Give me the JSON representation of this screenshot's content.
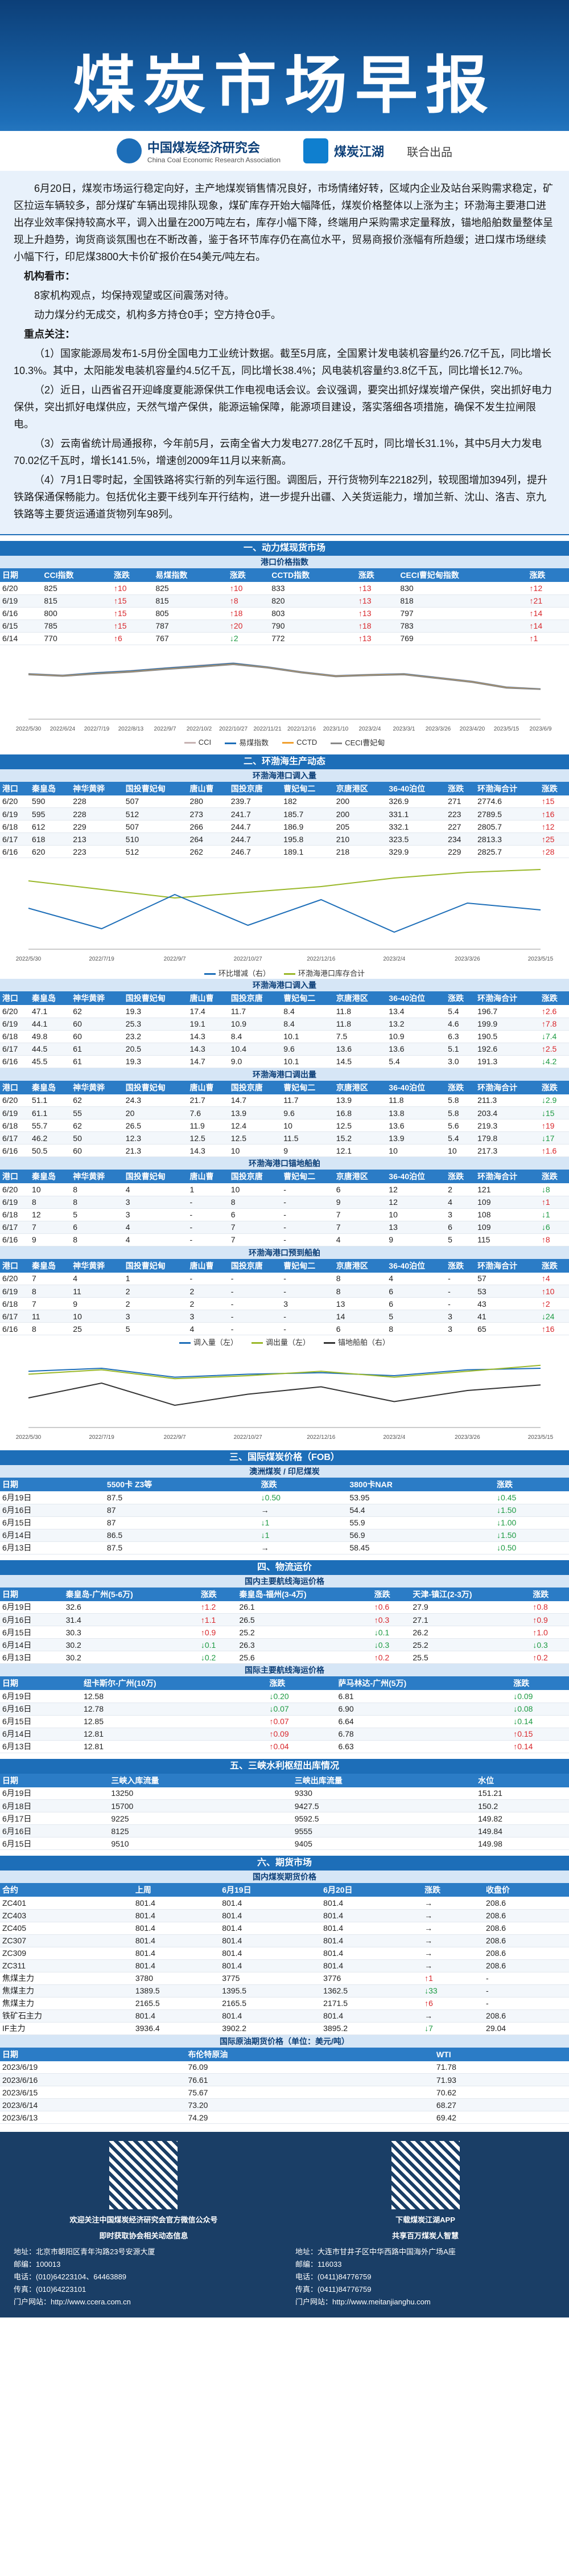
{
  "header": {
    "title": "煤炭市场早报",
    "org1": "中国煤炭经济研究会",
    "org1_en": "China Coal Economic Research Association",
    "org2": "煤炭江湖",
    "tag": "联合出品"
  },
  "summary": {
    "para1": "6月20日，煤炭市场运行稳定向好，主产地煤炭销售情况良好，市场情绪好转，区域内企业及站台采购需求稳定，矿区拉运车辆较多，部分煤矿车辆出现排队现象，煤矿库存开始大幅降低，煤炭价格整体以上涨为主；环渤海主要港口进出存业效率保持较高水平，调入出量在200万吨左右，库存小幅下降，终端用户采购需求定量释放，锚地船舶数量整体呈现上升趋势，询货商谈氛围也在不断改善，鉴于各环节库存仍在高位水平，贸易商报价涨幅有所趋缓；进口煤市场继续小幅下行，印尼煤3800大卡价矿报价在54美元/吨左右。",
    "views_head": "机构看市：",
    "views1": "8家机构观点，均保持观望或区间震荡对待。",
    "views2": "动力煤分约无成交，机构多方持仓0手；空方持仓0手。",
    "focus_head": "重点关注：",
    "focus1": "（1）国家能源局发布1-5月份全国电力工业统计数据。截至5月底，全国累计发电装机容量约26.7亿千瓦，同比增长10.3%。其中，太阳能发电装机容量约4.5亿千瓦，同比增长38.4%；风电装机容量约3.8亿千瓦，同比增长12.7%。",
    "focus2": "（2）近日，山西省召开迎峰度夏能源保供工作电视电话会议。会议强调，要突出抓好煤炭增产保供，突出抓好电力保供，突出抓好电煤供应，天然气增产保供，能源运输保障，能源项目建设，落实落细各项措施，确保不发生拉闸限电。",
    "focus3": "（3）云南省统计局通报称，今年前5月，云南全省大力发电277.28亿千瓦时，同比增长31.1%，其中5月大力发电70.02亿千瓦时，增长141.5%，增速创2009年11月以来新高。",
    "focus4": "（4）7月1日零时起，全国铁路将实行新的列车运行图。调图后，开行货物列车22182列，较现图增加394列，提升铁路保通保畅能力。包括优化主要干线列车开行结构，进一步提升出疆、入关货运能力，增加兰新、沈山、洛吉、京九铁路等主要货运通道货物列车98列。"
  },
  "s1": {
    "title": "一、动力煤现货市场",
    "sub": "港口价格指数",
    "headers": [
      "日期",
      "CCI指数",
      "涨跌",
      "易煤指数",
      "涨跌",
      "CCTD指数",
      "涨跌",
      "CECI曹妃甸指数",
      "涨跌"
    ],
    "rows": [
      [
        "6/20",
        "825",
        "↑10",
        "825",
        "↑10",
        "833",
        "↑13",
        "830",
        "↑12"
      ],
      [
        "6/19",
        "815",
        "↑15",
        "815",
        "↑8",
        "820",
        "↑13",
        "818",
        "↑21"
      ],
      [
        "6/16",
        "800",
        "↑15",
        "805",
        "↑18",
        "803",
        "↑13",
        "797",
        "↑14"
      ],
      [
        "6/15",
        "785",
        "↑15",
        "787",
        "↑20",
        "790",
        "↑18",
        "783",
        "↑14"
      ],
      [
        "6/14",
        "770",
        "↑6",
        "767",
        "↓2",
        "772",
        "↑13",
        "769",
        "↑1"
      ]
    ],
    "legend": [
      "CCI",
      "易煤指数",
      "CCTD",
      "CECI曹妃甸"
    ],
    "colors": [
      "#c7b3b3",
      "#1d6eb8",
      "#f0a030",
      "#888888"
    ]
  },
  "s2": {
    "title": "二、环渤海生产动态",
    "sub1": "环渤海港口调入量",
    "headers": [
      "港口",
      "秦皇岛",
      "神华黄骅",
      "国投曹妃甸",
      "唐山曹",
      "国投京唐",
      "曹妃甸二",
      "京唐港区",
      "36-40泊位",
      "涨跌",
      "环渤海合计",
      "涨跌"
    ],
    "rows1": [
      [
        "6/20",
        "590",
        "228",
        "507",
        "280",
        "239.7",
        "182",
        "200",
        "326.9",
        "271",
        "2774.6",
        "↑15"
      ],
      [
        "6/19",
        "595",
        "228",
        "512",
        "273",
        "241.7",
        "185.7",
        "200",
        "331.1",
        "223",
        "2789.5",
        "↑16"
      ],
      [
        "6/18",
        "612",
        "229",
        "507",
        "266",
        "244.7",
        "186.9",
        "205",
        "332.1",
        "227",
        "2805.7",
        "↑12"
      ],
      [
        "6/17",
        "618",
        "213",
        "510",
        "264",
        "244.7",
        "195.8",
        "210",
        "323.5",
        "234",
        "2813.3",
        "↑25"
      ],
      [
        "6/16",
        "620",
        "223",
        "512",
        "262",
        "246.7",
        "189.1",
        "218",
        "329.9",
        "229",
        "2825.7",
        "↑28"
      ]
    ],
    "chart_legend": [
      "环比增减（右）",
      "环渤海港口库存合计"
    ],
    "sub2": "环渤海港口调入量",
    "rows2": [
      [
        "6/20",
        "47.1",
        "62",
        "19.3",
        "17.4",
        "11.7",
        "8.4",
        "11.8",
        "13.4",
        "5.4",
        "196.7",
        "↑2.6"
      ],
      [
        "6/19",
        "44.1",
        "60",
        "25.3",
        "19.1",
        "10.9",
        "8.4",
        "11.8",
        "13.2",
        "4.6",
        "199.9",
        "↑7.8"
      ],
      [
        "6/18",
        "49.8",
        "60",
        "23.2",
        "14.3",
        "8.4",
        "10.1",
        "7.5",
        "10.9",
        "6.3",
        "190.5",
        "↓7.4"
      ],
      [
        "6/17",
        "44.5",
        "61",
        "20.5",
        "14.3",
        "10.4",
        "9.6",
        "13.6",
        "13.6",
        "5.1",
        "192.6",
        "↑2.5"
      ],
      [
        "6/16",
        "45.5",
        "61",
        "19.3",
        "14.7",
        "9.0",
        "10.1",
        "14.5",
        "5.4",
        "3.0",
        "191.3",
        "↓4.2"
      ]
    ],
    "sub3": "环渤海港口调出量",
    "rows3": [
      [
        "6/20",
        "51.1",
        "62",
        "24.3",
        "21.7",
        "14.7",
        "11.7",
        "13.9",
        "11.8",
        "5.8",
        "211.3",
        "↓2.9"
      ],
      [
        "6/19",
        "61.1",
        "55",
        "20",
        "7.6",
        "13.9",
        "9.6",
        "16.8",
        "13.8",
        "5.8",
        "203.4",
        "↓15"
      ],
      [
        "6/18",
        "55.7",
        "62",
        "26.5",
        "11.9",
        "12.4",
        "10",
        "12.5",
        "13.6",
        "5.6",
        "219.3",
        "↑19"
      ],
      [
        "6/17",
        "46.2",
        "50",
        "12.3",
        "12.5",
        "12.5",
        "11.5",
        "15.2",
        "13.9",
        "5.4",
        "179.8",
        "↓17"
      ],
      [
        "6/16",
        "50.5",
        "60",
        "21.3",
        "14.3",
        "10",
        "9",
        "12.1",
        "10",
        "10",
        "217.3",
        "↑1.6"
      ]
    ],
    "sub4": "环渤海港口锚地船舶",
    "rows4": [
      [
        "6/20",
        "10",
        "8",
        "4",
        "1",
        "10",
        "-",
        "6",
        "12",
        "2",
        "121",
        "↓8"
      ],
      [
        "6/19",
        "8",
        "8",
        "3",
        "-",
        "8",
        "-",
        "9",
        "12",
        "4",
        "109",
        "↑1"
      ],
      [
        "6/18",
        "12",
        "5",
        "3",
        "-",
        "6",
        "-",
        "7",
        "10",
        "3",
        "108",
        "↓1"
      ],
      [
        "6/17",
        "7",
        "6",
        "4",
        "-",
        "7",
        "-",
        "7",
        "13",
        "6",
        "109",
        "↓6"
      ],
      [
        "6/16",
        "9",
        "8",
        "4",
        "-",
        "7",
        "-",
        "4",
        "9",
        "5",
        "115",
        "↑8"
      ]
    ],
    "sub5": "环渤海港口预到船舶",
    "rows5": [
      [
        "6/20",
        "7",
        "4",
        "1",
        "-",
        "-",
        "-",
        "8",
        "4",
        "-",
        "57",
        "↑4"
      ],
      [
        "6/19",
        "8",
        "11",
        "2",
        "2",
        "-",
        "-",
        "8",
        "6",
        "-",
        "53",
        "↑10"
      ],
      [
        "6/18",
        "7",
        "9",
        "2",
        "2",
        "-",
        "3",
        "13",
        "6",
        "-",
        "43",
        "↑2"
      ],
      [
        "6/17",
        "11",
        "10",
        "3",
        "3",
        "-",
        "-",
        "14",
        "5",
        "3",
        "41",
        "↓24"
      ],
      [
        "6/16",
        "8",
        "25",
        "5",
        "4",
        "-",
        "-",
        "6",
        "8",
        "3",
        "65",
        "↑16"
      ]
    ],
    "flow_legend": [
      "调入量（左）",
      "调出量（左）",
      "锚地船舶（右）"
    ],
    "flow_unit": "单位：万吨"
  },
  "s3": {
    "title": "三、国际煤炭价格（FOB）",
    "aus_head": "澳洲煤炭",
    "indo_head": "印尼煤炭",
    "headers": [
      "日期",
      "5500卡 Z3等",
      "涨跌",
      "",
      "3800卡NAR",
      "涨跌"
    ],
    "rows": [
      [
        "6月19日",
        "87.5",
        "↓0.50",
        "",
        "53.95",
        "↓0.45"
      ],
      [
        "6月16日",
        "87",
        "→",
        "",
        "54.4",
        "↓1.50"
      ],
      [
        "6月15日",
        "87",
        "↓1",
        "",
        "55.9",
        "↓1.00"
      ],
      [
        "6月14日",
        "86.5",
        "↓1",
        "",
        "56.9",
        "↓1.50"
      ],
      [
        "6月13日",
        "87.5",
        "→",
        "",
        "58.45",
        "↓0.50"
      ]
    ]
  },
  "s4": {
    "title": "四、物流运价",
    "sub1": "国内主要航线海运价格",
    "headers1": [
      "日期",
      "秦皇岛-广州(5-6万)",
      "涨跌",
      "秦皇岛-福州(3-4万)",
      "涨跌",
      "天津-镇江(2-3万)",
      "涨跌"
    ],
    "rows1": [
      [
        "6月19日",
        "32.6",
        "↑1.2",
        "26.1",
        "↑0.6",
        "27.9",
        "↑0.8"
      ],
      [
        "6月16日",
        "31.4",
        "↑1.1",
        "26.5",
        "↑0.3",
        "27.1",
        "↑0.9"
      ],
      [
        "6月15日",
        "30.3",
        "↑0.9",
        "25.2",
        "↓0.1",
        "26.2",
        "↑1.0"
      ],
      [
        "6月14日",
        "30.2",
        "↓0.1",
        "26.3",
        "↓0.3",
        "25.2",
        "↓0.3"
      ],
      [
        "6月13日",
        "30.2",
        "↓0.2",
        "25.6",
        "↑0.2",
        "25.5",
        "↑0.2"
      ]
    ],
    "sub2": "国际主要航线海运价格",
    "headers2": [
      "日期",
      "纽卡斯尔-广州(10万)",
      "涨跌",
      "",
      "萨马林达-广州(5万)",
      "涨跌"
    ],
    "rows2": [
      [
        "6月19日",
        "12.58",
        "↓0.20",
        "",
        "6.81",
        "↓0.09"
      ],
      [
        "6月16日",
        "12.78",
        "↓0.07",
        "",
        "6.90",
        "↓0.08"
      ],
      [
        "6月15日",
        "12.85",
        "↑0.07",
        "",
        "6.64",
        "↓0.14"
      ],
      [
        "6月14日",
        "12.81",
        "↑0.09",
        "",
        "6.78",
        "↑0.15"
      ],
      [
        "6月13日",
        "12.81",
        "↑0.04",
        "",
        "6.63",
        "↑0.14"
      ]
    ]
  },
  "s5": {
    "title": "五、三峡水利枢纽出库情况",
    "headers": [
      "日期",
      "三峡入库流量",
      "",
      "三峡出库流量",
      "",
      "水位"
    ],
    "rows": [
      [
        "6月19日",
        "13250",
        "",
        "9330",
        "",
        "151.21"
      ],
      [
        "6月18日",
        "15700",
        "",
        "9427.5",
        "",
        "150.2"
      ],
      [
        "6月17日",
        "9225",
        "",
        "9592.5",
        "",
        "149.82"
      ],
      [
        "6月16日",
        "8125",
        "",
        "9555",
        "",
        "149.84"
      ],
      [
        "6月15日",
        "9510",
        "",
        "9405",
        "",
        "149.98"
      ]
    ]
  },
  "s6": {
    "title": "六、期货市场",
    "sub1": "国内煤炭期货价格",
    "headers1": [
      "合约",
      "上周",
      "6月19日",
      "6月20日",
      "涨跌",
      "收盘价"
    ],
    "rows1": [
      [
        "ZC401",
        "801.4",
        "801.4",
        "801.4",
        "→",
        "208.6"
      ],
      [
        "ZC403",
        "801.4",
        "801.4",
        "801.4",
        "→",
        "208.6"
      ],
      [
        "ZC405",
        "801.4",
        "801.4",
        "801.4",
        "→",
        "208.6"
      ],
      [
        "ZC307",
        "801.4",
        "801.4",
        "801.4",
        "→",
        "208.6"
      ],
      [
        "ZC309",
        "801.4",
        "801.4",
        "801.4",
        "→",
        "208.6"
      ],
      [
        "ZC311",
        "801.4",
        "801.4",
        "801.4",
        "→",
        "208.6"
      ],
      [
        "焦煤主力",
        "3780",
        "3775",
        "3776",
        "↑1",
        "-"
      ],
      [
        "焦煤主力",
        "1389.5",
        "1395.5",
        "1362.5",
        "↓33",
        "-"
      ],
      [
        "焦煤主力",
        "2165.5",
        "2165.5",
        "2171.5",
        "↑6",
        "-"
      ],
      [
        "铁矿石主力",
        "801.4",
        "801.4",
        "801.4",
        "→",
        "208.6"
      ],
      [
        "IF主力",
        "3936.4",
        "3902.2",
        "3895.2",
        "↓7",
        "29.04"
      ]
    ],
    "sub2": "国际原油期货价格（单位：美元/吨）",
    "headers2": [
      "日期",
      "布伦特原油",
      "",
      "",
      "WTI",
      ""
    ],
    "rows2": [
      [
        "2023/6/19",
        "76.09",
        "",
        "",
        "71.78",
        ""
      ],
      [
        "2023/6/16",
        "76.61",
        "",
        "",
        "71.93",
        ""
      ],
      [
        "2023/6/15",
        "75.67",
        "",
        "",
        "70.62",
        ""
      ],
      [
        "2023/6/14",
        "73.20",
        "",
        "",
        "68.27",
        ""
      ],
      [
        "2023/6/13",
        "74.29",
        "",
        "",
        "69.42",
        ""
      ]
    ]
  },
  "footer": {
    "left_cap": "欢迎关注中国煤炭经济研究会官方微信公众号",
    "left_cap2": "即时获取协会相关动态信息",
    "left_lines": [
      "地址：北京市朝阳区青年沟路23号安源大厦",
      "邮编：100013",
      "电话：(010)64223104、64463889",
      "传真：(010)64223101",
      "门户网站：http://www.ccera.com.cn"
    ],
    "right_cap": "下载煤炭江湖APP",
    "right_cap2": "共享百万煤炭人智慧",
    "right_lines": [
      "地址：大连市甘井子区中华西路中国海外广场A座",
      "邮编：116033",
      "电话：(0411)84776759",
      "传真：(0411)84776759",
      "门户网站：http://www.meitanjianghu.com"
    ]
  },
  "chart_data": [
    {
      "type": "line",
      "x": [
        "2022/5/30",
        "2022/6/24",
        "2022/7/19",
        "2022/8/13",
        "2022/9/7",
        "2022/10/2",
        "2022/10/27",
        "2022/11/21",
        "2022/12/16",
        "2023/1/10",
        "2023/2/4",
        "2023/3/1",
        "2023/3/26",
        "2023/4/20",
        "2023/5/15",
        "2023/6/9"
      ],
      "series": [
        {
          "name": "CCI",
          "values": [
            1200,
            1160,
            1230,
            1280,
            1350,
            1420,
            1480,
            1380,
            1250,
            1150,
            1180,
            1200,
            1100,
            1000,
            850,
            800
          ]
        },
        {
          "name": "易煤指数",
          "values": [
            1190,
            1150,
            1220,
            1270,
            1340,
            1400,
            1470,
            1370,
            1240,
            1140,
            1170,
            1190,
            1090,
            990,
            840,
            795
          ]
        },
        {
          "name": "CCTD",
          "values": [
            1180,
            1140,
            1200,
            1250,
            1320,
            1380,
            1450,
            1360,
            1230,
            1130,
            1160,
            1180,
            1080,
            980,
            830,
            790
          ]
        },
        {
          "name": "CECI曹妃甸",
          "values": [
            1170,
            1130,
            1190,
            1240,
            1310,
            1370,
            1440,
            1350,
            1220,
            1120,
            1150,
            1170,
            1070,
            970,
            820,
            785
          ]
        }
      ],
      "ylim": [
        0,
        1800
      ]
    },
    {
      "type": "line",
      "x": [
        "2022/5/30",
        "2022/7/19",
        "2022/9/7",
        "2022/10/27",
        "2022/12/16",
        "2023/2/4",
        "2023/3/26",
        "2023/5/15"
      ],
      "series": [
        {
          "name": "环渤海港口库存合计",
          "values": [
            2400,
            2100,
            1800,
            2000,
            2200,
            2500,
            2700,
            2800
          ]
        },
        {
          "name": "环比增减（右）",
          "values": [
            20,
            -40,
            60,
            -30,
            45,
            -50,
            35,
            15
          ]
        }
      ],
      "ylim": [
        0,
        3000
      ],
      "y2lim": [
        -100,
        150
      ]
    },
    {
      "type": "line",
      "x": [
        "2022/5/30",
        "2022/7/19",
        "2022/9/7",
        "2022/10/27",
        "2022/12/16",
        "2023/2/4",
        "2023/3/26",
        "2023/5/15"
      ],
      "series": [
        {
          "name": "调入量（左）",
          "values": [
            190,
            200,
            170,
            180,
            185,
            175,
            195,
            200
          ]
        },
        {
          "name": "调出量（左）",
          "values": [
            180,
            195,
            165,
            175,
            190,
            170,
            190,
            210
          ]
        },
        {
          "name": "锚地船舶（右）",
          "values": [
            80,
            120,
            60,
            90,
            110,
            70,
            100,
            115
          ]
        }
      ],
      "ylim": [
        0,
        250
      ],
      "y2lim": [
        0,
        200
      ]
    }
  ]
}
